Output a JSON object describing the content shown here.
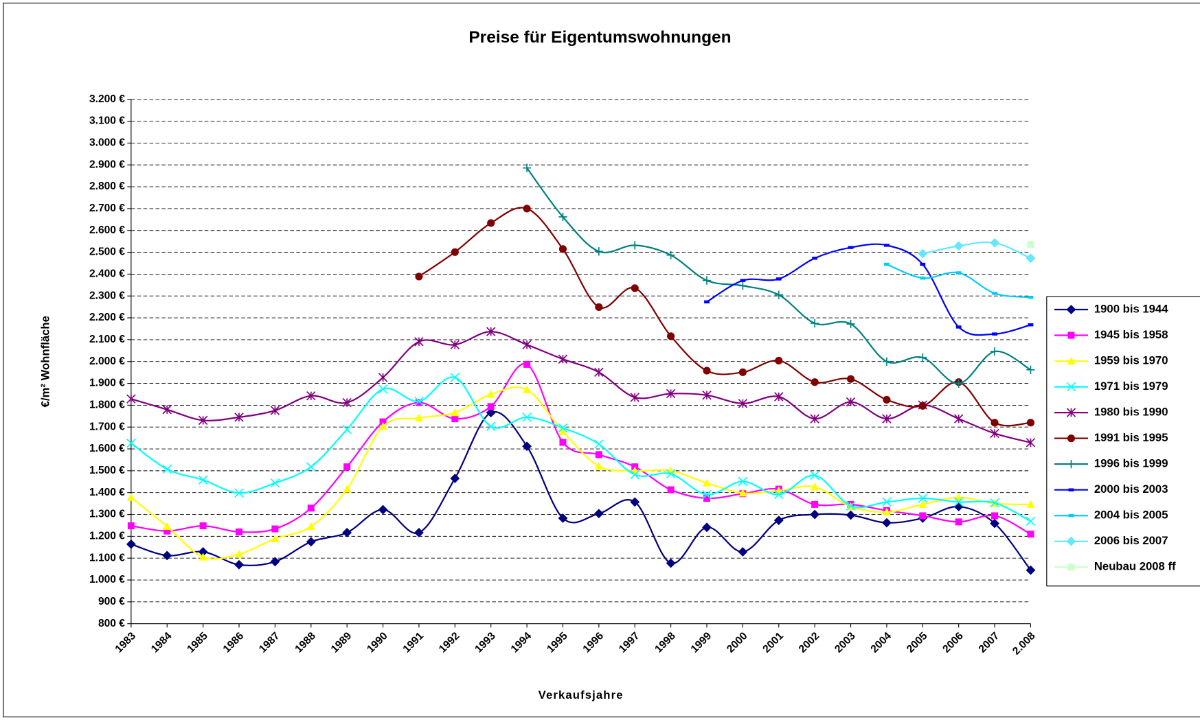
{
  "chart_data": {
    "type": "line",
    "title": "Preise für Eigentumswohnungen",
    "x_label": "Verkaufsjahre",
    "y_label": "€/m² Wohnfläche",
    "categories": [
      "1983",
      "1984",
      "1985",
      "1986",
      "1987",
      "1988",
      "1989",
      "1990",
      "1991",
      "1992",
      "1993",
      "1994",
      "1995",
      "1996",
      "1997",
      "1998",
      "1999",
      "2000",
      "2001",
      "2002",
      "2003",
      "2004",
      "2005",
      "2006",
      "2007",
      "2.008"
    ],
    "ylim": [
      800,
      3200
    ],
    "yticks": [
      {
        "value": 800,
        "label": "800 €"
      },
      {
        "value": 900,
        "label": "900 €"
      },
      {
        "value": 1000,
        "label": "1.000 €"
      },
      {
        "value": 1100,
        "label": "1.100 €"
      },
      {
        "value": 1200,
        "label": "1.200 €"
      },
      {
        "value": 1300,
        "label": "1.300 €"
      },
      {
        "value": 1400,
        "label": "1.400 €"
      },
      {
        "value": 1500,
        "label": "1.500 €"
      },
      {
        "value": 1600,
        "label": "1.600 €"
      },
      {
        "value": 1700,
        "label": "1.700 €"
      },
      {
        "value": 1800,
        "label": "1.800 €"
      },
      {
        "value": 1900,
        "label": "1.900 €"
      },
      {
        "value": 2000,
        "label": "2.000 €"
      },
      {
        "value": 2100,
        "label": "2.100 €"
      },
      {
        "value": 2200,
        "label": "2.200 €"
      },
      {
        "value": 2300,
        "label": "2.300 €"
      },
      {
        "value": 2400,
        "label": "2.400 €"
      },
      {
        "value": 2500,
        "label": "2.500 €"
      },
      {
        "value": 2600,
        "label": "2.600 €"
      },
      {
        "value": 2700,
        "label": "2.700 €"
      },
      {
        "value": 2800,
        "label": "2.800 €"
      },
      {
        "value": 2900,
        "label": "2.900 €"
      },
      {
        "value": 3000,
        "label": "3.000 €"
      },
      {
        "value": 3100,
        "label": "3.100 €"
      },
      {
        "value": 3200,
        "label": "3.200 €"
      }
    ],
    "grid": true,
    "legend": "right",
    "series": [
      {
        "name": "1900 bis 1944",
        "color": "#000080",
        "marker": "diamond",
        "values": [
          1164,
          1112,
          1129,
          1070,
          1084,
          1175,
          1217,
          1322,
          1217,
          1465,
          1766,
          1612,
          1283,
          1304,
          1357,
          1077,
          1241,
          1129,
          1273,
          1300,
          1297,
          1262,
          1283,
          1336,
          1259,
          1045
        ]
      },
      {
        "name": "1945 bis 1958",
        "color": "#ff00ff",
        "marker": "square",
        "values": [
          1248,
          1224,
          1248,
          1220,
          1234,
          1329,
          1518,
          1724,
          1812,
          1738,
          1794,
          1987,
          1630,
          1574,
          1518,
          1413,
          1374,
          1395,
          1416,
          1346,
          1346,
          1318,
          1294,
          1266,
          1294,
          1210
        ]
      },
      {
        "name": "1959 bis 1970",
        "color": "#ffff00",
        "marker": "triangle",
        "values": [
          1378,
          1245,
          1105,
          1119,
          1189,
          1245,
          1416,
          1703,
          1742,
          1766,
          1850,
          1871,
          1679,
          1521,
          1500,
          1500,
          1444,
          1398,
          1409,
          1426,
          1336,
          1311,
          1346,
          1378,
          1350,
          1346
        ]
      },
      {
        "name": "1971 bis 1979",
        "color": "#00ffff",
        "marker": "x",
        "values": [
          1626,
          1507,
          1458,
          1398,
          1444,
          1518,
          1689,
          1874,
          1818,
          1927,
          1703,
          1745,
          1696,
          1622,
          1482,
          1486,
          1391,
          1451,
          1391,
          1479,
          1339,
          1357,
          1374,
          1357,
          1353,
          1269
        ]
      },
      {
        "name": "1980 bis 1990",
        "color": "#800080",
        "marker": "star",
        "values": [
          1829,
          1780,
          1731,
          1745,
          1776,
          1843,
          1812,
          1927,
          2091,
          2077,
          2137,
          2077,
          2011,
          1951,
          1836,
          1853,
          1846,
          1808,
          1839,
          1738,
          1815,
          1738,
          1801,
          1738,
          1671,
          1629
        ]
      },
      {
        "name": "1991 bis 1995",
        "color": "#800000",
        "marker": "circle",
        "values": [
          null,
          null,
          null,
          null,
          null,
          null,
          null,
          null,
          2389,
          2501,
          2634,
          2700,
          2515,
          2249,
          2336,
          2116,
          1958,
          1951,
          2004,
          1906,
          1920,
          1825,
          1797,
          1906,
          1720,
          1720
        ]
      },
      {
        "name": "1996 bis 1999",
        "color": "#008080",
        "marker": "plus",
        "values": [
          null,
          null,
          null,
          null,
          null,
          null,
          null,
          null,
          null,
          null,
          null,
          2886,
          2662,
          2504,
          2532,
          2487,
          2371,
          2347,
          2305,
          2175,
          2172,
          2000,
          2018,
          1899,
          2046,
          1962
        ]
      },
      {
        "name": "2000 bis 2003",
        "color": "#0000ff",
        "marker": "dash",
        "values": [
          null,
          null,
          null,
          null,
          null,
          null,
          null,
          null,
          null,
          null,
          null,
          null,
          null,
          null,
          null,
          null,
          2273,
          2371,
          2378,
          2473,
          2522,
          2532,
          2445,
          2158,
          2126,
          2168
        ]
      },
      {
        "name": "2004 bis 2005",
        "color": "#00ccff",
        "marker": "dash",
        "values": [
          null,
          null,
          null,
          null,
          null,
          null,
          null,
          null,
          null,
          null,
          null,
          null,
          null,
          null,
          null,
          null,
          null,
          null,
          null,
          null,
          null,
          2445,
          2382,
          2406,
          2312,
          2294
        ]
      },
      {
        "name": "2006 bis 2007",
        "color": "#66e6ff",
        "marker": "diamond",
        "values": [
          null,
          null,
          null,
          null,
          null,
          null,
          null,
          null,
          null,
          null,
          null,
          null,
          null,
          null,
          null,
          null,
          null,
          null,
          null,
          null,
          null,
          null,
          2494,
          2529,
          2543,
          2473
        ]
      },
      {
        "name": "Neubau 2008 ff",
        "color": "#ccffcc",
        "marker": "square",
        "values": [
          null,
          null,
          null,
          null,
          null,
          null,
          null,
          null,
          null,
          null,
          null,
          null,
          null,
          null,
          null,
          null,
          null,
          null,
          null,
          null,
          null,
          null,
          null,
          null,
          null,
          2536
        ]
      }
    ]
  }
}
